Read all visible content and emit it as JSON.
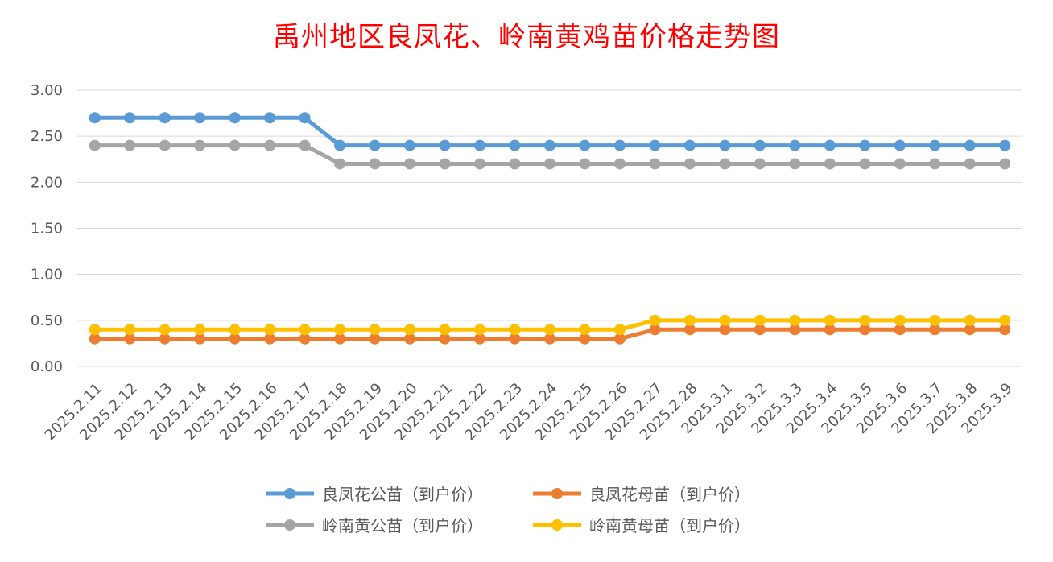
{
  "title": "禹州地区良凤花、岭南黄鸡苗价格走势图",
  "chart_data": {
    "type": "line",
    "title": "禹州地区良凤花、岭南黄鸡苗价格走势图",
    "xlabel": "",
    "ylabel": "",
    "ylim": [
      0,
      3
    ],
    "ytick_labels": [
      "0.00",
      "0.50",
      "1.00",
      "1.50",
      "2.00",
      "2.50",
      "3.00"
    ],
    "grid": true,
    "legend_position": "bottom",
    "categories": [
      "2025.2.11",
      "2025.2.12",
      "2025.2.13",
      "2025.2.14",
      "2025.2.15",
      "2025.2.16",
      "2025.2.17",
      "2025.2.18",
      "2025.2.19",
      "2025.2.20",
      "2025.2.21",
      "2025.2.22",
      "2025.2.23",
      "2025.2.24",
      "2025.2.25",
      "2025.2.26",
      "2025.2.27",
      "2025.2.28",
      "2025.3.1",
      "2025.3.2",
      "2025.3.3",
      "2025.3.4",
      "2025.3.5",
      "2025.3.6",
      "2025.3.7",
      "2025.3.8",
      "2025.3.9"
    ],
    "series": [
      {
        "name": "良凤花公苗（到户价）",
        "color": "#5b9bd5",
        "values": [
          2.7,
          2.7,
          2.7,
          2.7,
          2.7,
          2.7,
          2.7,
          2.4,
          2.4,
          2.4,
          2.4,
          2.4,
          2.4,
          2.4,
          2.4,
          2.4,
          2.4,
          2.4,
          2.4,
          2.4,
          2.4,
          2.4,
          2.4,
          2.4,
          2.4,
          2.4,
          2.4
        ]
      },
      {
        "name": "良凤花母苗（到户价）",
        "color": "#ed7d31",
        "values": [
          0.3,
          0.3,
          0.3,
          0.3,
          0.3,
          0.3,
          0.3,
          0.3,
          0.3,
          0.3,
          0.3,
          0.3,
          0.3,
          0.3,
          0.3,
          0.3,
          0.4,
          0.4,
          0.4,
          0.4,
          0.4,
          0.4,
          0.4,
          0.4,
          0.4,
          0.4,
          0.4
        ]
      },
      {
        "name": "岭南黄公苗（到户价）",
        "color": "#a5a5a5",
        "values": [
          2.4,
          2.4,
          2.4,
          2.4,
          2.4,
          2.4,
          2.4,
          2.2,
          2.2,
          2.2,
          2.2,
          2.2,
          2.2,
          2.2,
          2.2,
          2.2,
          2.2,
          2.2,
          2.2,
          2.2,
          2.2,
          2.2,
          2.2,
          2.2,
          2.2,
          2.2,
          2.2
        ]
      },
      {
        "name": "岭南黄母苗（到户价）",
        "color": "#ffc000",
        "values": [
          0.4,
          0.4,
          0.4,
          0.4,
          0.4,
          0.4,
          0.4,
          0.4,
          0.4,
          0.4,
          0.4,
          0.4,
          0.4,
          0.4,
          0.4,
          0.4,
          0.5,
          0.5,
          0.5,
          0.5,
          0.5,
          0.5,
          0.5,
          0.5,
          0.5,
          0.5,
          0.5
        ]
      }
    ]
  }
}
